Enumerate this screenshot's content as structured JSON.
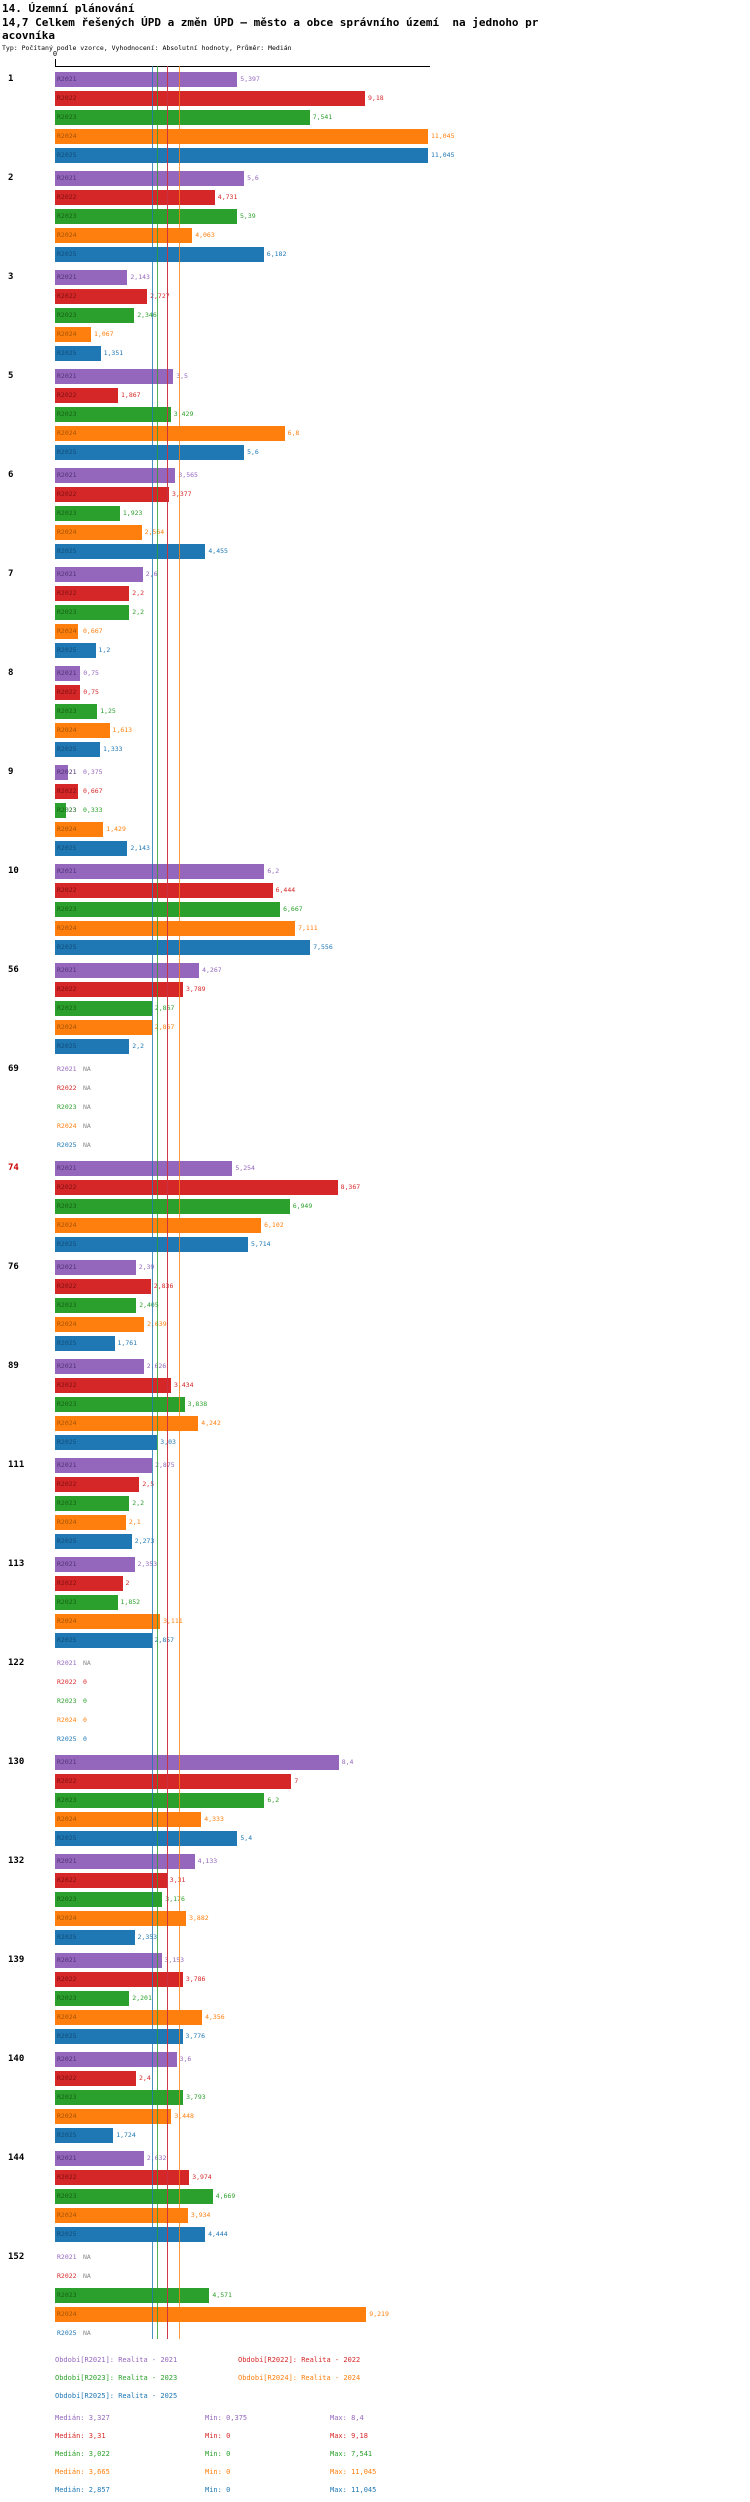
{
  "header": {
    "title": "14. Územní plánování",
    "subtitle": "14,7 Celkem řešených ÚPD a změn ÚPD — město a obce správního území  na jednoho pracovníka",
    "meta": "Typ: Počítaný podle vzorce, Vyhodnocení: Absolutní hodnoty, Průměr: Medián"
  },
  "chart_data": {
    "type": "bar",
    "orientation": "horizontal",
    "title": "14,7 Celkem řešených ÚPD a změn ÚPD — město a obce správního území na jednoho pracovníka",
    "x_axis_origin_label": "0",
    "xlim": [
      0,
      11.5
    ],
    "grid": false,
    "na_color": "#8a8a8a",
    "highlighted_category": "74",
    "highlight_color": "#cc0000",
    "categories": [
      "1",
      "2",
      "3",
      "5",
      "6",
      "7",
      "8",
      "9",
      "10",
      "56",
      "69",
      "74",
      "76",
      "89",
      "111",
      "113",
      "122",
      "130",
      "132",
      "139",
      "140",
      "144",
      "152"
    ],
    "series": [
      {
        "key": "R2021",
        "legend": "Období[R2021]: Realita - 2021",
        "color": "#9467bd",
        "on_bar_label_color": "#503272",
        "median": 3.327,
        "values": [
          5.397,
          5.6,
          2.143,
          3.5,
          3.565,
          2.6,
          0.75,
          0.375,
          6.2,
          4.267,
          null,
          5.254,
          2.39,
          2.626,
          2.875,
          2.353,
          null,
          8.4,
          4.133,
          3.153,
          3.6,
          2.632,
          null
        ],
        "labels": [
          "5,397",
          "5,6",
          "2,143",
          "3,5",
          "3,565",
          "2,6",
          "0,75",
          "0,375",
          "6,2",
          "4,267",
          "NA",
          "5,254",
          "2,39",
          "2,626",
          "2,875",
          "2,353",
          "NA",
          "8,4",
          "4,133",
          "3,153",
          "3,6",
          "2,632",
          "NA"
        ],
        "stats": {
          "median": "Medián: 3,327",
          "min": "Min: 0,375",
          "max": "Max: 8,4"
        }
      },
      {
        "key": "R2022",
        "legend": "Období[R2022]: Realita - 2022",
        "color": "#d62728",
        "on_bar_label_color": "#7c1012",
        "median": 3.31,
        "values": [
          9.18,
          4.731,
          2.727,
          1.867,
          3.377,
          2.2,
          0.75,
          0.667,
          6.444,
          3.789,
          null,
          8.367,
          2.836,
          3.434,
          2.5,
          2,
          0,
          7,
          3.31,
          3.786,
          2.4,
          3.974,
          null
        ],
        "labels": [
          "9,18",
          "4,731",
          "2,727",
          "1,867",
          "3,377",
          "2,2",
          "0,75",
          "0,667",
          "6,444",
          "3,789",
          "NA",
          "8,367",
          "2,836",
          "3,434",
          "2,5",
          "2",
          "0",
          "7",
          "3,31",
          "3,786",
          "2,4",
          "3,974",
          "NA"
        ],
        "stats": {
          "median": "Medián: 3,31",
          "min": "Min: 0",
          "max": "Max: 9,18"
        }
      },
      {
        "key": "R2023",
        "legend": "Období[R2023]: Realita - 2023",
        "color": "#2ca02c",
        "on_bar_label_color": "#156115",
        "median": 3.022,
        "values": [
          7.541,
          5.39,
          2.346,
          3.429,
          1.923,
          2.2,
          1.25,
          0.333,
          6.667,
          2.867,
          null,
          6.949,
          2.405,
          3.838,
          2.2,
          1.852,
          0,
          6.2,
          3.176,
          2.201,
          3.793,
          4.669,
          4.571
        ],
        "labels": [
          "7,541",
          "5,39",
          "2,346",
          "3,429",
          "1,923",
          "2,2",
          "1,25",
          "0,333",
          "6,667",
          "2,867",
          "NA",
          "6,949",
          "2,405",
          "3,838",
          "2,2",
          "1,852",
          "0",
          "6,2",
          "3,176",
          "2,201",
          "3,793",
          "4,669",
          "4,571"
        ],
        "stats": {
          "median": "Medián: 3,022",
          "min": "Min: 0",
          "max": "Max: 7,541"
        }
      },
      {
        "key": "R2024",
        "legend": "Období[R2024]: Realita - 2024",
        "color": "#ff7f0e",
        "on_bar_label_color": "#a35204",
        "median": 3.665,
        "values": [
          11.045,
          4.063,
          1.067,
          6.8,
          2.564,
          0.667,
          1.613,
          1.429,
          7.111,
          2.867,
          null,
          6.102,
          2.639,
          4.242,
          2.1,
          3.111,
          0,
          4.333,
          3.882,
          4.356,
          3.448,
          3.934,
          9.219
        ],
        "labels": [
          "11,045",
          "4,063",
          "1,067",
          "6,8",
          "2,564",
          "0,667",
          "1,613",
          "1,429",
          "7,111",
          "2,867",
          "NA",
          "6,102",
          "2,639",
          "4,242",
          "2,1",
          "3,111",
          "0",
          "4,333",
          "3,882",
          "4,356",
          "3,448",
          "3,934",
          "9,219"
        ],
        "stats": {
          "median": "Medián: 3,665",
          "min": "Min: 0",
          "max": "Max: 11,045"
        }
      },
      {
        "key": "R2025",
        "legend": "Období[R2025]: Realita - 2025",
        "color": "#1f77b4",
        "on_bar_label_color": "#104e77",
        "median": 2.857,
        "values": [
          11.045,
          6.182,
          1.351,
          5.6,
          4.455,
          1.2,
          1.333,
          2.143,
          7.556,
          2.2,
          null,
          5.714,
          1.761,
          3.03,
          2.273,
          2.857,
          0,
          5.4,
          2.353,
          3.776,
          1.724,
          4.444,
          null
        ],
        "labels": [
          "11,045",
          "6,182",
          "1,351",
          "5,6",
          "4,455",
          "1,2",
          "1,333",
          "2,143",
          "7,556",
          "2,2",
          "NA",
          "5,714",
          "1,761",
          "3,03",
          "2,273",
          "2,857",
          "0",
          "5,4",
          "2,353",
          "3,776",
          "1,724",
          "4,444",
          "NA"
        ],
        "stats": {
          "median": "Medián: 2,857",
          "min": "Min: 0",
          "max": "Max: 11,045"
        }
      }
    ]
  }
}
